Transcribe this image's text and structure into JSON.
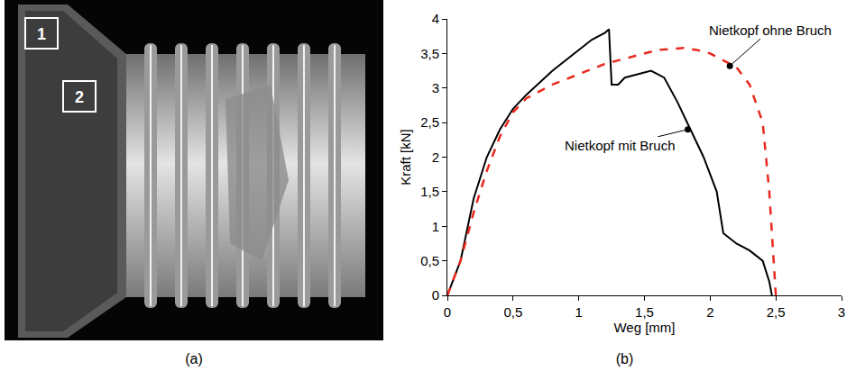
{
  "chart_data": {
    "type": "line",
    "xlabel": "Weg [mm]",
    "ylabel": "Kraft [kN]",
    "xlim": [
      0,
      3
    ],
    "ylim": [
      0,
      4
    ],
    "xticks": [
      0,
      {
        "value": 0.5,
        "label": "0,5"
      },
      1,
      {
        "value": 1.5,
        "label": "1,5"
      },
      2,
      {
        "value": 2.5,
        "label": "2,5"
      },
      3
    ],
    "yticks": [
      0,
      {
        "value": 0.5,
        "label": "0,5"
      },
      1,
      {
        "value": 1.5,
        "label": "1,5"
      },
      2,
      {
        "value": 2.5,
        "label": "2,5"
      },
      3,
      {
        "value": 3.5,
        "label": "3,5"
      },
      4
    ],
    "grid": false,
    "series": [
      {
        "color": "#000000",
        "line_style": "solid",
        "x": [
          0,
          0.1,
          0.2,
          0.3,
          0.4,
          0.5,
          0.6,
          0.8,
          1.0,
          1.1,
          1.2,
          1.23,
          1.25,
          1.3,
          1.35,
          1.45,
          1.55,
          1.65,
          1.75,
          1.85,
          1.95,
          2.05,
          2.1,
          2.2,
          2.3,
          2.4,
          2.45,
          2.47
        ],
        "values": [
          0,
          0.5,
          1.4,
          2.0,
          2.4,
          2.7,
          2.9,
          3.25,
          3.55,
          3.7,
          3.8,
          3.85,
          3.05,
          3.05,
          3.15,
          3.2,
          3.25,
          3.15,
          2.8,
          2.4,
          2.0,
          1.5,
          0.9,
          0.75,
          0.65,
          0.5,
          0.2,
          0
        ]
      },
      {
        "color": "#e8281e",
        "line_style": "dash",
        "x": [
          0,
          0.1,
          0.2,
          0.3,
          0.4,
          0.5,
          0.6,
          0.8,
          1.0,
          1.2,
          1.4,
          1.6,
          1.8,
          1.9,
          2.0,
          2.1,
          2.2,
          2.3,
          2.4,
          2.45,
          2.48,
          2.5
        ],
        "values": [
          0,
          0.5,
          1.2,
          1.8,
          2.3,
          2.65,
          2.85,
          3.05,
          3.2,
          3.35,
          3.45,
          3.55,
          3.58,
          3.55,
          3.5,
          3.4,
          3.3,
          3.05,
          2.5,
          1.5,
          0.5,
          0
        ]
      }
    ],
    "annotations": [
      {
        "text": "Nietkopf ohne Bruch",
        "x": 2.15,
        "y": 3.32
      },
      {
        "text": "Nietkopf mit Bruch",
        "x": 1.83,
        "y": 2.4
      }
    ],
    "panel_label": "(b)"
  },
  "image": {
    "panel_label": "(a)",
    "regions": [
      "1",
      "2"
    ]
  }
}
